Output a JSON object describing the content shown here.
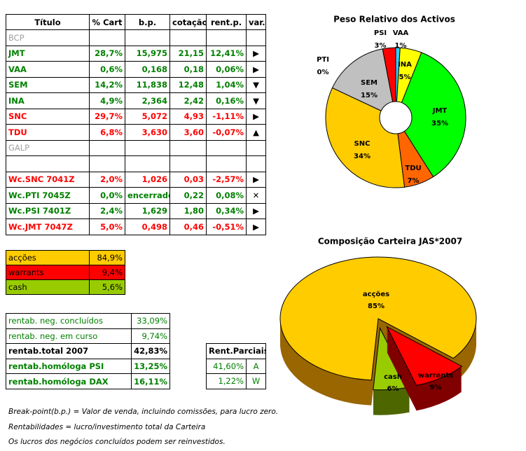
{
  "main_table": {
    "header": [
      "Título",
      "% Cart",
      "b.p.",
      "cotação",
      "rent.p.",
      "var."
    ],
    "rows": [
      {
        "label": "BCP",
        "color": "#a0a0a0"
      },
      {
        "cells": [
          "JMT",
          "28,7%",
          "15,975",
          "21,15",
          "12,41%",
          "▶"
        ],
        "color": "#008000"
      },
      {
        "cells": [
          "VAA",
          "0,6%",
          "0,168",
          "0,18",
          "0,06%",
          "▶"
        ],
        "color": "#008000"
      },
      {
        "cells": [
          "SEM",
          "14,2%",
          "11,838",
          "12,48",
          "1,04%",
          "▼"
        ],
        "color": "#008000"
      },
      {
        "cells": [
          "INA",
          "4,9%",
          "2,364",
          "2,42",
          "0,16%",
          "▼"
        ],
        "color": "#008000"
      },
      {
        "cells": [
          "SNC",
          "29,7%",
          "5,072",
          "4,93",
          "-1,11%",
          "▶"
        ],
        "color": "#ff0000"
      },
      {
        "cells": [
          "TDU",
          "6,8%",
          "3,630",
          "3,60",
          "-0,07%",
          "▲"
        ],
        "color": "#ff0000"
      },
      {
        "label": "GALP",
        "color": "#a0a0a0"
      },
      null,
      {
        "cells": [
          "Wc.SNC 7041Z",
          "2,0%",
          "1,026",
          "0,03",
          "-2,57%",
          "▶"
        ],
        "color": "#ff0000"
      },
      {
        "cells": [
          "Wc.PTI 7045Z",
          "0,0%",
          "encerrado",
          "0,22",
          "0,08%",
          "✕"
        ],
        "color": "#008000"
      },
      {
        "cells": [
          "Wc.PSI 7401Z",
          "2,4%",
          "1,629",
          "1,80",
          "0,34%",
          "▶"
        ],
        "color": "#008000"
      },
      {
        "cells": [
          "Wc.JMT 7047Z",
          "5,0%",
          "0,498",
          "0,46",
          "-0,51%",
          "▶"
        ],
        "color": "#ff0000"
      }
    ]
  },
  "allocation_table": {
    "rows": [
      {
        "cells": [
          "acções",
          "84,9%"
        ],
        "color": "#ffcc00"
      },
      {
        "cells": [
          "warrants",
          "9,4%"
        ],
        "color": "#ff0000"
      },
      {
        "cells": [
          "cash",
          "5,6%"
        ],
        "color": "#99cc00"
      }
    ]
  },
  "returns_table": {
    "rows": [
      {
        "cells": [
          "rentab. neg. concluídos",
          "33,09%"
        ],
        "color": "#008000",
        "bold": false
      },
      {
        "cells": [
          "rentab. neg. em curso",
          "9,74%"
        ],
        "color": "#008000",
        "bold": false
      },
      {
        "cells": [
          "rentab.total 2007",
          "42,83%"
        ],
        "color": "#000000",
        "bold": true
      },
      {
        "cells": [
          "rentab.homóloga PSI",
          "13,25%"
        ],
        "color": "#008000",
        "bold": true
      },
      {
        "cells": [
          "rentab.homóloga DAX",
          "16,11%"
        ],
        "color": "#008000",
        "bold": true
      }
    ]
  },
  "partial_table": {
    "header": "Rent.Parciais",
    "rows": [
      [
        "41,60%",
        "A"
      ],
      [
        "1,22%",
        "W"
      ]
    ]
  },
  "footnotes": [
    "Break-point(b.p.) = Valor de venda, incluindo comissões, para lucro zero.",
    "Rentabilidades = lucro/investimento total da Carteira",
    "Os lucros dos negócios concluídos podem ser reinvestidos."
  ],
  "chart_data": [
    {
      "type": "pie",
      "title": "Peso Relativo dos Activos",
      "hole": true,
      "categories": [
        "VAA",
        "INA",
        "JMT",
        "TDU",
        "SNC",
        "SEM",
        "PTI",
        "PSI"
      ],
      "values": [
        1,
        5,
        35,
        7,
        34,
        15,
        0,
        3
      ],
      "value_labels": [
        "1%",
        "5%",
        "35%",
        "7%",
        "34%",
        "15%",
        "0%",
        "3%"
      ],
      "colors": [
        "#33ccff",
        "#ffff00",
        "#00ff00",
        "#ff6600",
        "#ffcc00",
        "#c0c0c0",
        "#000080",
        "#ff0000"
      ]
    },
    {
      "type": "pie3d",
      "title": "Composição Carteira JAS*2007",
      "categories": [
        "acções",
        "warrants",
        "cash"
      ],
      "values": [
        85,
        9,
        6
      ],
      "value_labels": [
        "85%",
        "9%",
        "6%"
      ],
      "colors": [
        "#ffcc00",
        "#ff0000",
        "#99cc00"
      ],
      "side_colors": [
        "#996600",
        "#800000",
        "#4d6600"
      ],
      "exploded": [
        false,
        true,
        true
      ]
    }
  ]
}
